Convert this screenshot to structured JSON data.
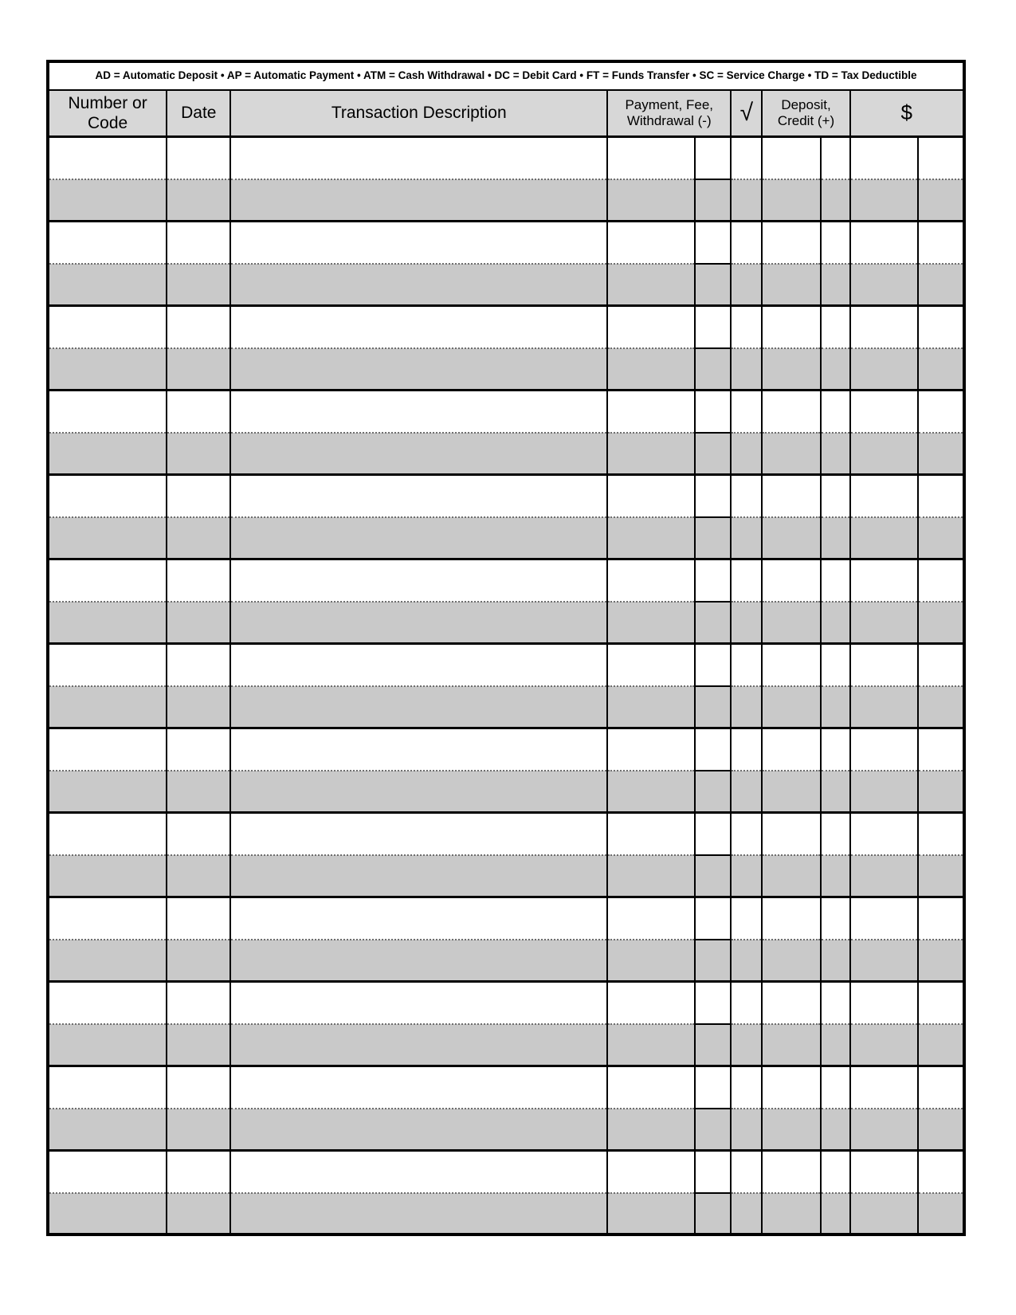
{
  "legend": {
    "text": "AD = Automatic Deposit •  AP = Automatic Payment •  ATM = Cash Withdrawal • DC = Debit Card • FT = Funds Transfer • SC = Service Charge • TD = Tax Deductible"
  },
  "columns": {
    "number_or_code": "Number or\nCode",
    "date": "Date",
    "description": "Transaction Description",
    "payment": "Payment, Fee,\nWithdrawal (-)",
    "check": "√",
    "deposit": "Deposit,\nCredit (+)",
    "balance": "$"
  },
  "register": {
    "entry_rows": 13
  },
  "colors": {
    "row_shade": "#c9c9c9",
    "header_shade": "#d7d7d7",
    "line": "#000000"
  }
}
